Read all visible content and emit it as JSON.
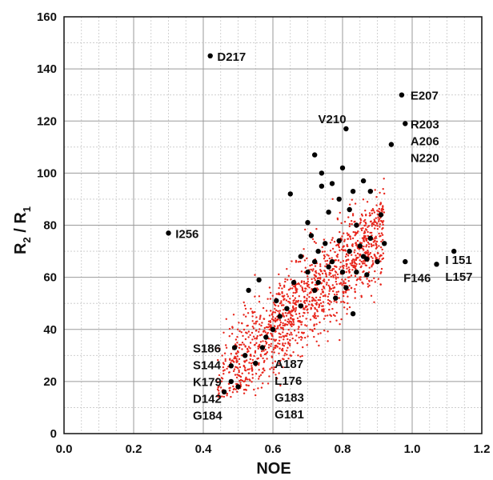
{
  "chart_data": {
    "type": "scatter",
    "xlabel": "NOE",
    "ylabel": {
      "main": "R",
      "sub1": "2",
      "sep": " / R",
      "sub2": "1"
    },
    "xlim": [
      0.0,
      1.2
    ],
    "ylim": [
      0,
      160
    ],
    "x_ticks": [
      "0.0",
      "0.2",
      "0.4",
      "0.6",
      "0.8",
      "1.0",
      "1.2"
    ],
    "y_ticks": [
      "0",
      "20",
      "40",
      "60",
      "80",
      "100",
      "120",
      "140",
      "160"
    ],
    "grid": true,
    "colors": {
      "measured": "#000000",
      "simulated": "#e8261c"
    },
    "series": [
      {
        "role": "simulated",
        "color": "#e8261c",
        "generated": {
          "count": 1400,
          "x_range": [
            0.44,
            0.92
          ],
          "y_center_slope": 125,
          "y_center_intercept": -36,
          "y_spread": 13,
          "y_extra_top": 118,
          "y_floor": 14
        }
      },
      {
        "role": "measured",
        "color": "#000000",
        "points": [
          [
            0.42,
            145
          ],
          [
            0.97,
            130
          ],
          [
            0.98,
            119
          ],
          [
            0.81,
            117
          ],
          [
            0.94,
            111
          ],
          [
            0.3,
            77
          ],
          [
            1.12,
            70
          ],
          [
            1.07,
            65
          ],
          [
            0.98,
            66
          ],
          [
            0.46,
            16
          ],
          [
            0.48,
            20
          ],
          [
            0.5,
            18
          ],
          [
            0.48,
            26
          ],
          [
            0.49,
            33
          ],
          [
            0.53,
            55
          ],
          [
            0.56,
            59
          ],
          [
            0.61,
            51
          ],
          [
            0.65,
            92
          ],
          [
            0.72,
            107
          ],
          [
            0.74,
            100
          ],
          [
            0.8,
            102
          ],
          [
            0.83,
            93
          ],
          [
            0.86,
            97
          ],
          [
            0.88,
            93
          ],
          [
            0.91,
            84
          ],
          [
            0.92,
            73
          ],
          [
            0.87,
            67
          ],
          [
            0.83,
            46
          ],
          [
            0.78,
            52
          ],
          [
            0.7,
            81
          ],
          [
            0.71,
            76
          ],
          [
            0.73,
            70
          ],
          [
            0.75,
            73
          ],
          [
            0.77,
            66
          ],
          [
            0.8,
            62
          ],
          [
            0.82,
            70
          ],
          [
            0.85,
            72
          ],
          [
            0.88,
            75
          ],
          [
            0.84,
            80
          ],
          [
            0.76,
            85
          ],
          [
            0.79,
            90
          ],
          [
            0.82,
            86
          ],
          [
            0.72,
            55
          ],
          [
            0.68,
            49
          ],
          [
            0.66,
            58
          ],
          [
            0.6,
            40
          ],
          [
            0.57,
            33
          ],
          [
            0.55,
            27
          ],
          [
            0.62,
            45
          ],
          [
            0.7,
            62
          ],
          [
            0.73,
            58
          ],
          [
            0.76,
            64
          ],
          [
            0.86,
            68
          ],
          [
            0.84,
            62
          ],
          [
            0.87,
            61
          ],
          [
            0.9,
            66
          ],
          [
            0.79,
            74
          ],
          [
            0.74,
            95
          ],
          [
            0.72,
            66
          ],
          [
            0.64,
            48
          ],
          [
            0.68,
            68
          ],
          [
            0.58,
            37
          ],
          [
            0.52,
            30
          ],
          [
            0.81,
            56
          ],
          [
            0.77,
            96
          ]
        ]
      }
    ],
    "annotations": [
      {
        "lines": [
          "D217"
        ],
        "x": 0.44,
        "y": 145,
        "anchor": "start"
      },
      {
        "lines": [
          "E207"
        ],
        "x": 0.995,
        "y": 130,
        "anchor": "start"
      },
      {
        "lines": [
          "V210"
        ],
        "x": 0.73,
        "y": 121,
        "anchor": "start"
      },
      {
        "lines": [
          "R203",
          "A206",
          "N220"
        ],
        "x": 0.995,
        "y": 119,
        "anchor": "start"
      },
      {
        "lines": [
          "I256"
        ],
        "x": 0.32,
        "y": 77,
        "anchor": "start"
      },
      {
        "lines": [
          "I 151",
          "L157"
        ],
        "x": 1.095,
        "y": 67,
        "anchor": "start"
      },
      {
        "lines": [
          "F146"
        ],
        "x": 0.975,
        "y": 60,
        "anchor": "start"
      },
      {
        "lines": [
          "S186",
          "S144",
          "K179",
          "D142",
          "G184"
        ],
        "x": 0.37,
        "y": 33,
        "anchor": "start"
      },
      {
        "lines": [
          "A187",
          "L176",
          "G183",
          "G181"
        ],
        "x": 0.605,
        "y": 27,
        "anchor": "start"
      }
    ]
  }
}
